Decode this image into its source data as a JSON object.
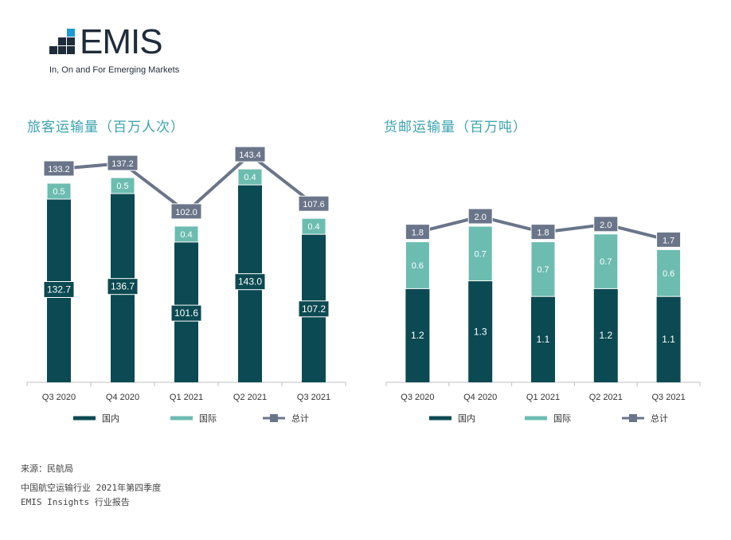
{
  "logo": {
    "wordmark": "EMIS",
    "tagline": "In, On and For Emerging Markets"
  },
  "colors": {
    "domestic": "#0b4a52",
    "international": "#6cbcb0",
    "total": "#6a7589",
    "title": "#3aa3b0",
    "logo_dark": "#1f2c3a",
    "logo_blue": "#1a9ad6"
  },
  "footer": {
    "source": "来源：民航局",
    "line1": "中国航空运输行业 2021年第四季度",
    "line2": "EMIS Insights 行业报告"
  },
  "chart_data": [
    {
      "type": "bar",
      "stacked": true,
      "title": "旅客运输量（百万人次）",
      "categories": [
        "Q3 2020",
        "Q4 2020",
        "Q1 2021",
        "Q2 2021",
        "Q3 2021"
      ],
      "series": [
        {
          "name": "国内",
          "type": "bar",
          "values": [
            132.7,
            136.7,
            101.6,
            143.0,
            107.2
          ],
          "labels": [
            "132.7",
            "136.7",
            "101.6",
            "143.0",
            "107.2"
          ]
        },
        {
          "name": "国际",
          "type": "bar",
          "values": [
            0.5,
            0.5,
            0.4,
            0.4,
            0.4
          ],
          "labels": [
            "0.5",
            "0.5",
            "0.4",
            "0.4",
            "0.4"
          ]
        },
        {
          "name": "总计",
          "type": "line",
          "values": [
            133.2,
            137.2,
            102.0,
            143.4,
            107.6
          ],
          "labels": [
            "133.2",
            "137.2",
            "102.0",
            "143.4",
            "107.6"
          ]
        }
      ],
      "legend": "bottom",
      "grid": false
    },
    {
      "type": "bar",
      "stacked": true,
      "title": "货邮运输量（百万吨）",
      "categories": [
        "Q3 2020",
        "Q4 2020",
        "Q1 2021",
        "Q2 2021",
        "Q3 2021"
      ],
      "series": [
        {
          "name": "国内",
          "type": "bar",
          "values": [
            1.2,
            1.3,
            1.1,
            1.2,
            1.1
          ],
          "labels": [
            "1.2",
            "1.3",
            "1.1",
            "1.2",
            "1.1"
          ]
        },
        {
          "name": "国际",
          "type": "bar",
          "values": [
            0.6,
            0.7,
            0.7,
            0.7,
            0.6
          ],
          "labels": [
            "0.6",
            "0.7",
            "0.7",
            "0.7",
            "0.6"
          ]
        },
        {
          "name": "总计",
          "type": "line",
          "values": [
            1.8,
            2.0,
            1.8,
            2.0,
            1.7
          ],
          "labels": [
            "1.8",
            "2.0",
            "1.8",
            "2.0",
            "1.7"
          ]
        }
      ],
      "legend": "bottom",
      "grid": false
    }
  ]
}
